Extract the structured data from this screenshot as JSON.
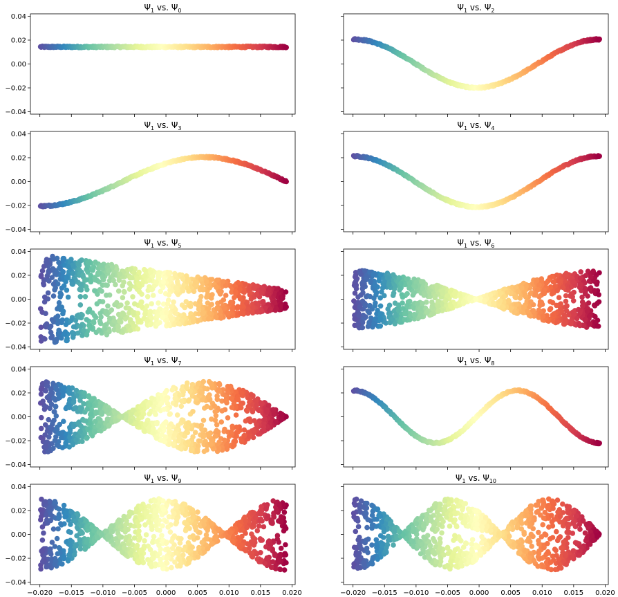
{
  "chart_data": {
    "type": "scatter",
    "layout": {
      "rows": 5,
      "cols": 2,
      "sharex": true,
      "sharey": true
    },
    "xlim": [
      -0.0215,
      0.0205
    ],
    "ylim": [
      -0.042,
      0.042
    ],
    "xticks": [
      -0.02,
      -0.015,
      -0.01,
      -0.005,
      0.0,
      0.005,
      0.01,
      0.015,
      0.02
    ],
    "xtick_labels": [
      "−0.020",
      "−0.015",
      "−0.010",
      "−0.005",
      "0.000",
      "0.005",
      "0.010",
      "0.015",
      "0.020"
    ],
    "yticks": [
      0.04,
      0.02,
      0.0,
      -0.02,
      -0.04
    ],
    "ytick_labels": [
      "0.04",
      "0.02",
      "0.00",
      "−0.02",
      "−0.04"
    ],
    "colormap": [
      "#5e4fa2",
      "#3288bd",
      "#66c2a5",
      "#abdda4",
      "#e6f598",
      "#ffffbf",
      "#fee08b",
      "#fdae61",
      "#f46d43",
      "#d53e4f",
      "#9e0142"
    ],
    "x_range": [
      -0.0199,
      0.0191
    ],
    "panels": [
      {
        "title_main": "Ψ",
        "sub_a": "1",
        "mid": " vs. Ψ",
        "sub_b": "0",
        "mode": 0
      },
      {
        "title_main": "Ψ",
        "sub_a": "1",
        "mid": " vs. Ψ",
        "sub_b": "2",
        "mode": 2
      },
      {
        "title_main": "Ψ",
        "sub_a": "1",
        "mid": " vs. Ψ",
        "sub_b": "3",
        "mode": 3
      },
      {
        "title_main": "Ψ",
        "sub_a": "1",
        "mid": " vs. Ψ",
        "sub_b": "4",
        "mode": 4
      },
      {
        "title_main": "Ψ",
        "sub_a": "1",
        "mid": " vs. Ψ",
        "sub_b": "5",
        "mode": 5
      },
      {
        "title_main": "Ψ",
        "sub_a": "1",
        "mid": " vs. Ψ",
        "sub_b": "6",
        "mode": 6
      },
      {
        "title_main": "Ψ",
        "sub_a": "1",
        "mid": " vs. Ψ",
        "sub_b": "7",
        "mode": 7
      },
      {
        "title_main": "Ψ",
        "sub_a": "1",
        "mid": " vs. Ψ",
        "sub_b": "8",
        "mode": 8
      },
      {
        "title_main": "Ψ",
        "sub_a": "1",
        "mid": " vs. Ψ",
        "sub_b": "9",
        "mode": 9
      },
      {
        "title_main": "Ψ",
        "sub_a": "1",
        "mid": " vs. Ψ",
        "sub_b": "10",
        "mode": 10
      }
    ]
  }
}
